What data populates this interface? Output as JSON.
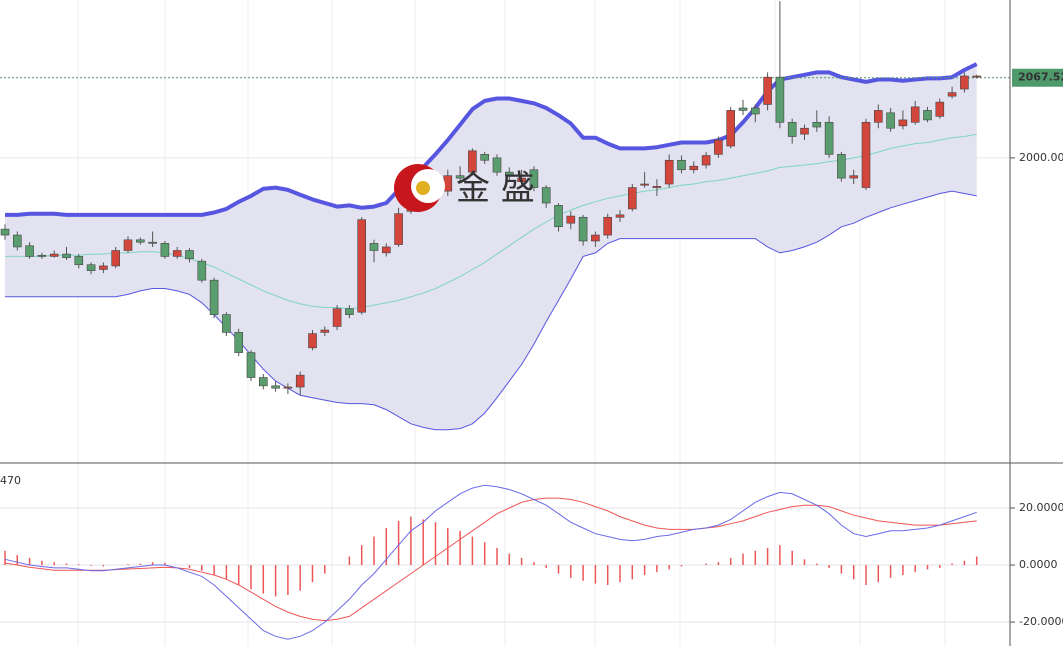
{
  "chart_data": [
    {
      "type": "candlestick",
      "watermark": "金 盛",
      "last_price": 2067.52,
      "ylim": [
        1743,
        2133
      ],
      "yticks": [
        {
          "value": 2000,
          "label": "2000.00"
        }
      ],
      "grid": true,
      "up_color": "#d2463c",
      "down_color": "#5a9e6f",
      "band_color": "#5656e0",
      "middle_color": "#7fd6c0",
      "band_fill": "#e2e2f1",
      "last_color": "#4e9a6a",
      "open": [
        1940,
        1935,
        1926,
        1918,
        1917,
        1919,
        1917,
        1910,
        1906,
        1909,
        1922,
        1931,
        1929,
        1928,
        1917,
        1922,
        1913,
        1897,
        1868,
        1853,
        1836,
        1815,
        1808,
        1806,
        1807,
        1840,
        1853,
        1858,
        1873,
        1870,
        1928,
        1920,
        1927,
        1955,
        1972,
        1978,
        1972,
        1985,
        1988,
        2003,
        2000,
        1988,
        1980,
        1990,
        1975,
        1960,
        1945,
        1950,
        1930,
        1935,
        1950,
        1957,
        1977,
        1975,
        1978,
        1998,
        1990,
        1994,
        2003,
        2010,
        2042,
        2042,
        2045,
        2068,
        2030,
        2020,
        2030,
        2030,
        2003,
        1983,
        1975,
        2030,
        2038,
        2027,
        2030,
        2040,
        2035,
        2052,
        2058,
        2068
      ],
      "high": [
        1944,
        1938,
        1929,
        1920,
        1922,
        1925,
        1919,
        1912,
        1912,
        1925,
        1934,
        1933,
        1938,
        1930,
        1925,
        1924,
        1915,
        1899,
        1870,
        1856,
        1838,
        1818,
        1812,
        1810,
        1820,
        1855,
        1858,
        1876,
        1876,
        1950,
        1931,
        1928,
        1958,
        1974,
        1993,
        1983,
        1990,
        1993,
        2008,
        2005,
        2003,
        1992,
        1990,
        1993,
        1977,
        1962,
        1955,
        1952,
        1938,
        1953,
        1956,
        1978,
        1988,
        1982,
        2003,
        2002,
        1997,
        2005,
        2018,
        2043,
        2049,
        2045,
        2072,
        2132,
        2033,
        2028,
        2040,
        2035,
        2005,
        1990,
        2033,
        2045,
        2042,
        2040,
        2048,
        2043,
        2050,
        2060,
        2072,
        2070
      ],
      "low": [
        1931,
        1922,
        1915,
        1915,
        1916,
        1914,
        1907,
        1902,
        1903,
        1907,
        1920,
        1927,
        1925,
        1915,
        1915,
        1912,
        1895,
        1865,
        1850,
        1833,
        1812,
        1805,
        1803,
        1801,
        1800,
        1838,
        1850,
        1855,
        1865,
        1868,
        1912,
        1917,
        1925,
        1953,
        1970,
        1972,
        1968,
        1980,
        1985,
        1995,
        1985,
        1980,
        1975,
        1972,
        1958,
        1938,
        1940,
        1926,
        1925,
        1932,
        1946,
        1955,
        1975,
        1968,
        1975,
        1987,
        1987,
        1991,
        2000,
        2008,
        2036,
        2030,
        2040,
        2025,
        2012,
        2015,
        2022,
        2000,
        1980,
        1978,
        1973,
        2025,
        2022,
        2024,
        2028,
        2030,
        2033,
        2050,
        2055,
        2067
      ],
      "close": [
        1935,
        1925,
        1917,
        1917,
        1919,
        1916,
        1910,
        1905,
        1909,
        1922,
        1931,
        1929,
        1928,
        1917,
        1922,
        1915,
        1897,
        1868,
        1853,
        1836,
        1815,
        1808,
        1806,
        1807,
        1817,
        1852,
        1855,
        1873,
        1868,
        1948,
        1922,
        1925,
        1953,
        1970,
        1990,
        1976,
        1985,
        1983,
        2006,
        1998,
        1988,
        1985,
        1983,
        1975,
        1962,
        1942,
        1951,
        1930,
        1935,
        1950,
        1952,
        1975,
        1978,
        1976,
        1998,
        1990,
        1993,
        2002,
        2015,
        2040,
        2040,
        2037,
        2068,
        2030,
        2018,
        2025,
        2026,
        2003,
        1983,
        1985,
        2030,
        2040,
        2025,
        2032,
        2043,
        2032,
        2047,
        2055,
        2069,
        2069
      ],
      "upper": [
        1952,
        1952,
        1953,
        1953,
        1953,
        1952,
        1952,
        1952,
        1952,
        1952,
        1952,
        1952,
        1952,
        1952,
        1952,
        1952,
        1952,
        1954,
        1957,
        1963,
        1968,
        1974,
        1975,
        1973,
        1969,
        1965,
        1962,
        1959,
        1960,
        1958,
        1959,
        1962,
        1973,
        1983,
        1992,
        2003,
        2015,
        2028,
        2041,
        2048,
        2050,
        2050,
        2048,
        2046,
        2042,
        2036,
        2029,
        2017,
        2017,
        2012,
        2008,
        2008,
        2008,
        2009,
        2011,
        2013,
        2013,
        2013,
        2015,
        2019,
        2030,
        2042,
        2056,
        2066,
        2068,
        2070,
        2072,
        2072,
        2068,
        2066,
        2064,
        2066,
        2066,
        2065,
        2066,
        2067,
        2067,
        2068,
        2074,
        2079
      ],
      "middle": [
        1917,
        1917,
        1917,
        1917,
        1918,
        1918,
        1918,
        1919,
        1919,
        1920,
        1920,
        1921,
        1921,
        1920,
        1918,
        1915,
        1912,
        1908,
        1903,
        1898,
        1893,
        1888,
        1884,
        1880,
        1877,
        1875,
        1874,
        1874,
        1873,
        1874,
        1876,
        1878,
        1880,
        1883,
        1886,
        1890,
        1895,
        1900,
        1906,
        1912,
        1919,
        1926,
        1933,
        1940,
        1946,
        1952,
        1956,
        1960,
        1963,
        1966,
        1968,
        1970,
        1972,
        1973,
        1975,
        1977,
        1978,
        1980,
        1981,
        1983,
        1985,
        1987,
        1989,
        1992,
        1993,
        1994,
        1995,
        1997,
        1998,
        2000,
        2002,
        2005,
        2008,
        2010,
        2012,
        2013,
        2015,
        2017,
        2018,
        2020
      ],
      "lower": [
        1883,
        1883,
        1883,
        1883,
        1883,
        1883,
        1883,
        1883,
        1883,
        1883,
        1885,
        1888,
        1890,
        1890,
        1888,
        1885,
        1878,
        1868,
        1857,
        1846,
        1834,
        1822,
        1812,
        1806,
        1800,
        1798,
        1796,
        1794,
        1793,
        1793,
        1792,
        1788,
        1782,
        1776,
        1773,
        1771,
        1771,
        1772,
        1776,
        1785,
        1798,
        1812,
        1826,
        1843,
        1862,
        1880,
        1898,
        1917,
        1920,
        1928,
        1932,
        1932,
        1932,
        1932,
        1932,
        1932,
        1932,
        1932,
        1932,
        1932,
        1932,
        1932,
        1925,
        1920,
        1922,
        1925,
        1929,
        1935,
        1942,
        1945,
        1950,
        1954,
        1958,
        1961,
        1964,
        1967,
        1970,
        1972,
        1970,
        1968
      ]
    },
    {
      "type": "macd",
      "label": "470",
      "label_color": "#e02020",
      "ylim": [
        -28.4,
        35.8
      ],
      "yticks": [
        {
          "value": 20,
          "label": "20.0000"
        },
        {
          "value": 0,
          "label": "0.0000"
        },
        {
          "value": -20,
          "label": "-20.0000"
        }
      ],
      "grid": true,
      "dif_color": "#6a6ae8",
      "dea_color": "#ee5555",
      "hist_color": "#ee5555",
      "dif": [
        2,
        1,
        0,
        -0.5,
        -1,
        -1,
        -1.5,
        -2,
        -2,
        -1.5,
        -1,
        -0.5,
        0,
        0,
        -1,
        -2.5,
        -4,
        -7,
        -11,
        -15,
        -19,
        -23,
        -25,
        -26,
        -25,
        -23,
        -20,
        -16,
        -12,
        -7,
        -3,
        2,
        7,
        12,
        15,
        19,
        22,
        25,
        27,
        28,
        27.5,
        26.5,
        25,
        23,
        21,
        18,
        15,
        13,
        11,
        10,
        9,
        8.5,
        9,
        10,
        10.5,
        11.5,
        12.5,
        13,
        14,
        16,
        19,
        22,
        24,
        25.5,
        25,
        23,
        21,
        18,
        14,
        11,
        10,
        11,
        12,
        12,
        12.5,
        13,
        14,
        15.5,
        17,
        18.5
      ],
      "dea": [
        0.7,
        0,
        -0.8,
        -1.3,
        -1.8,
        -1.8,
        -1.8,
        -1.8,
        -1.8,
        -1.6,
        -1.4,
        -1.2,
        -1,
        -0.8,
        -1,
        -1.5,
        -2.5,
        -3.5,
        -5,
        -7,
        -9.5,
        -12,
        -14.5,
        -16.5,
        -18,
        -19,
        -19.5,
        -19,
        -18,
        -15,
        -12,
        -9,
        -6,
        -3,
        0,
        3,
        6,
        9,
        12,
        15,
        18,
        20,
        22,
        23,
        23.5,
        23.5,
        23,
        22,
        20.5,
        19,
        17,
        15.5,
        14,
        13,
        12.5,
        12.5,
        12.5,
        13,
        13.5,
        14.5,
        15.5,
        17,
        18.5,
        19.5,
        20.5,
        21,
        21,
        20.5,
        19,
        17.5,
        16.5,
        15.5,
        15,
        14.5,
        14,
        14,
        14,
        14.5,
        15,
        15.5
      ],
      "hist": [
        5,
        3.5,
        2.5,
        1.5,
        1,
        0.5,
        0.3,
        -0.3,
        -0.5,
        0,
        0.3,
        0.5,
        1,
        0.8,
        0,
        -1,
        -2,
        -3.5,
        -5,
        -7,
        -8.5,
        -10,
        -11,
        -10.5,
        -9,
        -6,
        -3,
        0,
        3,
        7,
        10,
        13,
        15.5,
        17,
        16,
        15,
        13,
        12,
        10,
        8,
        6,
        4,
        2.5,
        1,
        -1,
        -3,
        -4.5,
        -5.5,
        -6.5,
        -7,
        -6,
        -5,
        -3.5,
        -2.5,
        -1.5,
        -0.5,
        0,
        0.5,
        1,
        2.5,
        4,
        5,
        6,
        7,
        5,
        2,
        0.5,
        -1,
        -3,
        -5,
        -7,
        -6,
        -4.5,
        -3.5,
        -2.5,
        -1.5,
        -1,
        0.5,
        1.5,
        3
      ]
    }
  ]
}
